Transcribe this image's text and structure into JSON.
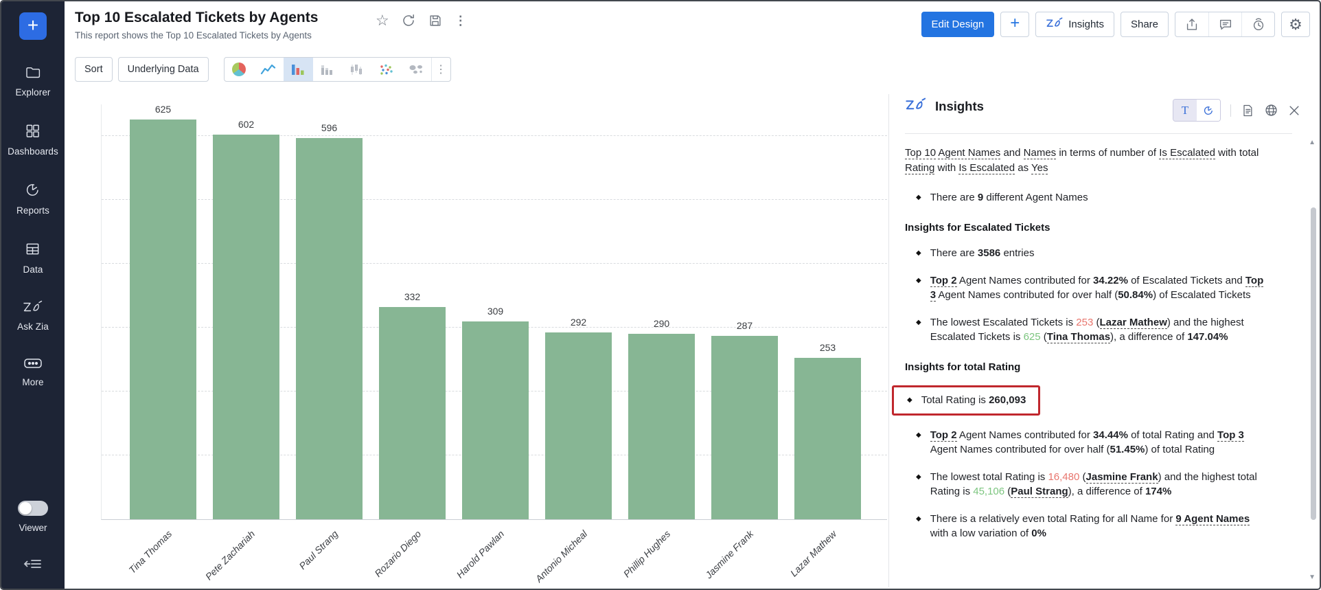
{
  "colors": {
    "accent_blue": "#2374e1",
    "bar_green": "#87b694",
    "low_red": "#e8756d",
    "high_green": "#7cc57f",
    "highlight_border": "#c0272d",
    "sidebar_bg": "#1d2435"
  },
  "sidebar": {
    "plus_label": "+",
    "items": [
      {
        "label": "Explorer",
        "icon": "folder-icon"
      },
      {
        "label": "Dashboards",
        "icon": "dashboard-grid-icon"
      },
      {
        "label": "Reports",
        "icon": "pie-report-icon"
      },
      {
        "label": "Data",
        "icon": "table-icon"
      },
      {
        "label": "Ask Zia",
        "icon": "zia-logo-icon"
      },
      {
        "label": "More",
        "icon": "ellipsis-icon"
      }
    ],
    "viewer_label": "Viewer",
    "bottom_icons": [
      "viewer-toggle",
      "collapse-sidebar-icon"
    ]
  },
  "header": {
    "title": "Top 10 Escalated Tickets by Agents",
    "subtitle": "This report shows the Top 10 Escalated Tickets by Agents",
    "title_action_icons": [
      "star-icon",
      "refresh-icon",
      "save-icon",
      "kebab-menu-icon"
    ],
    "edit_design_label": "Edit Design",
    "plus_label": "+",
    "insights_label": "Insights",
    "share_label": "Share",
    "action_icons": [
      "export-icon",
      "comment-icon",
      "alarm-icon",
      "gear-icon"
    ]
  },
  "toolbar": {
    "sort_label": "Sort",
    "underlying_data_label": "Underlying Data",
    "chart_type_icons": [
      "pie-chart-icon",
      "line-chart-icon",
      "bar-chart-icon",
      "stacked-bar-icon",
      "candlestick-bar-icon",
      "scatter-plot-icon",
      "map-chart-icon"
    ],
    "selected_chart_type_index": 2,
    "more_icon": "kebab-menu-icon"
  },
  "chart_data": {
    "type": "bar",
    "title": "Top 10 Escalated Tickets by Agents",
    "categories": [
      "Tina Thomas",
      "Pete Zachariah",
      "Paul Strang",
      "Rozario Diego",
      "Harold Pawlan",
      "Antonio Micheal",
      "Phillip Hughes",
      "Jasmine Frank",
      "Lazar Mathew"
    ],
    "values": [
      625,
      602,
      596,
      332,
      309,
      292,
      290,
      287,
      253
    ],
    "bar_color": "#87b694",
    "data_labels": true,
    "xlabel": "",
    "ylabel": "",
    "ylim": [
      0,
      650
    ],
    "gridlines": [
      100,
      200,
      300,
      400,
      500,
      600
    ],
    "grid_style": "dashed",
    "legend": "none"
  },
  "insights_panel": {
    "title": "Insights",
    "toggle_t_label": "T",
    "header_icons": [
      "text-view-toggle",
      "chart-view-toggle",
      "document-icon",
      "globe-icon",
      "close-icon"
    ],
    "scrollbar_icons": [
      "scroll-up-arrow",
      "scroll-down-arrow"
    ],
    "blocks": [
      {
        "type": "para",
        "segments": [
          {
            "t": "Top 10",
            "u": true
          },
          {
            "t": " "
          },
          {
            "t": "Agent Names",
            "u": true
          },
          {
            "t": " and "
          },
          {
            "t": "Names",
            "u": true
          },
          {
            "t": " in terms of number of "
          },
          {
            "t": "Is Escalated",
            "u": true
          },
          {
            "t": " with total "
          },
          {
            "t": "Rating",
            "u": true
          },
          {
            "t": " with "
          },
          {
            "t": "Is Escalated",
            "u": true
          },
          {
            "t": " as "
          },
          {
            "t": "Yes",
            "u": true
          }
        ]
      },
      {
        "type": "bullet",
        "segments": [
          {
            "t": "There are "
          },
          {
            "t": "9",
            "b": true
          },
          {
            "t": " different Agent Names"
          }
        ]
      },
      {
        "type": "heading",
        "text": "Insights for Escalated Tickets"
      },
      {
        "type": "bullet",
        "segments": [
          {
            "t": "There are "
          },
          {
            "t": "3586",
            "b": true
          },
          {
            "t": " entries"
          }
        ]
      },
      {
        "type": "bullet",
        "segments": [
          {
            "t": "Top 2",
            "b": true,
            "u": true
          },
          {
            "t": " Agent Names contributed for "
          },
          {
            "t": "34.22%",
            "b": true
          },
          {
            "t": " of Escalated Tickets and "
          },
          {
            "t": "Top 3",
            "b": true,
            "u": true
          },
          {
            "t": " Agent Names contributed for over half ("
          },
          {
            "t": "50.84%",
            "b": true
          },
          {
            "t": ") of Escalated Tickets"
          }
        ]
      },
      {
        "type": "bullet",
        "segments": [
          {
            "t": "The lowest Escalated Tickets is "
          },
          {
            "t": "253",
            "c": "low"
          },
          {
            "t": " ("
          },
          {
            "t": "Lazar Mathew",
            "b": true,
            "u": true
          },
          {
            "t": ") and the highest Escalated Tickets is "
          },
          {
            "t": "625",
            "c": "high"
          },
          {
            "t": " ("
          },
          {
            "t": "Tina Thomas",
            "b": true,
            "u": true
          },
          {
            "t": "), a difference of "
          },
          {
            "t": "147.04%",
            "b": true
          }
        ]
      },
      {
        "type": "heading",
        "text": "Insights for total Rating"
      },
      {
        "type": "bullet",
        "boxed": true,
        "segments": [
          {
            "t": "Total Rating is "
          },
          {
            "t": "260,093",
            "b": true
          }
        ]
      },
      {
        "type": "bullet",
        "segments": [
          {
            "t": "Top 2",
            "b": true,
            "u": true
          },
          {
            "t": " Agent Names contributed for "
          },
          {
            "t": "34.44%",
            "b": true
          },
          {
            "t": " of total Rating and "
          },
          {
            "t": "Top 3",
            "b": true,
            "u": true
          },
          {
            "t": " Agent Names contributed for over half ("
          },
          {
            "t": "51.45%",
            "b": true
          },
          {
            "t": ") of total Rating"
          }
        ]
      },
      {
        "type": "bullet",
        "segments": [
          {
            "t": "The lowest total Rating is "
          },
          {
            "t": "16,480",
            "c": "low"
          },
          {
            "t": " ("
          },
          {
            "t": "Jasmine Frank",
            "b": true,
            "u": true
          },
          {
            "t": ") and the highest total Rating is "
          },
          {
            "t": "45,106",
            "c": "high"
          },
          {
            "t": " ("
          },
          {
            "t": "Paul Strang",
            "b": true,
            "u": true
          },
          {
            "t": "), a difference of "
          },
          {
            "t": "174%",
            "b": true
          }
        ]
      },
      {
        "type": "bullet",
        "segments": [
          {
            "t": "There is a relatively even total Rating for all Name for "
          },
          {
            "t": "9 Agent Names",
            "b": true,
            "u": true
          },
          {
            "t": " with a low variation of "
          },
          {
            "t": "0%",
            "b": true
          }
        ]
      }
    ]
  }
}
